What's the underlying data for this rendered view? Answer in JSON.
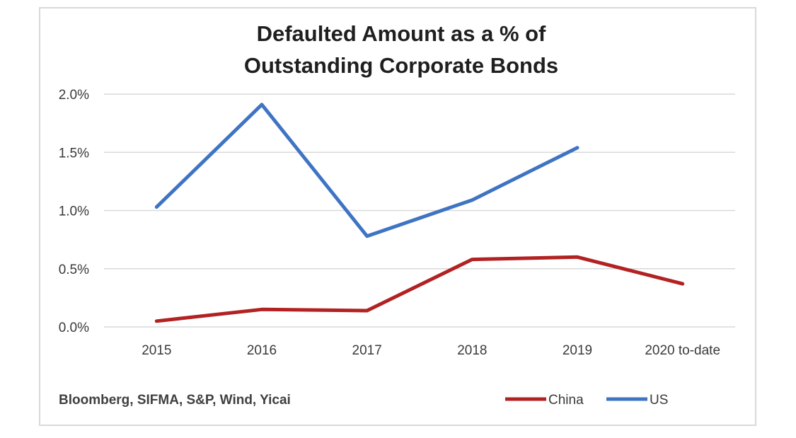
{
  "chart_data": {
    "type": "line",
    "title_lines": [
      "Defaulted Amount as a % of",
      "Outstanding Corporate Bonds"
    ],
    "categories": [
      "2015",
      "2016",
      "2017",
      "2018",
      "2019",
      "2020 to-date"
    ],
    "ylim": [
      0,
      2.0
    ],
    "yticks": [
      0.0,
      0.5,
      1.0,
      1.5,
      2.0
    ],
    "ytick_labels": [
      "0.0%",
      "0.5%",
      "1.0%",
      "1.5%",
      "2.0%"
    ],
    "grid": true,
    "legend_position": "bottom-right",
    "series": [
      {
        "name": "China",
        "color": "#b22222",
        "values": [
          0.05,
          0.15,
          0.14,
          0.58,
          0.6,
          0.37
        ]
      },
      {
        "name": "US",
        "color": "#3f74c4",
        "values": [
          1.03,
          1.91,
          0.78,
          1.09,
          1.54,
          null
        ]
      }
    ],
    "source": "Bloomberg, SIFMA, S&P, Wind, Yicai"
  }
}
